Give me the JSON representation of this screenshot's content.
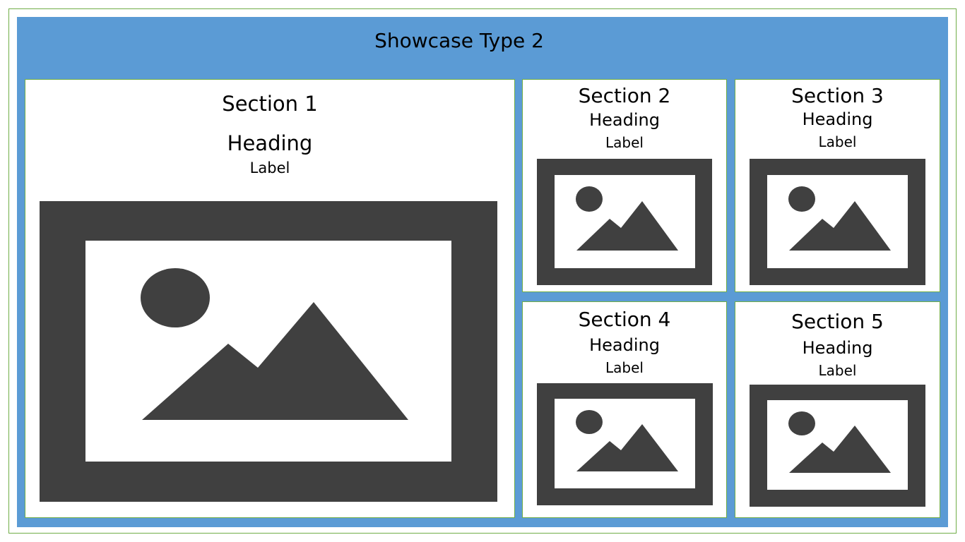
{
  "title": "Showcase Type 2",
  "colors": {
    "frame": "#5b9bd5",
    "panel": "#ffffff",
    "border": "#70ad47",
    "image": "#404040"
  },
  "sections": [
    {
      "name": "Section 1",
      "heading": "Heading",
      "label": "Label",
      "image_icon": "image-placeholder-icon"
    },
    {
      "name": "Section 2",
      "heading": "Heading",
      "label": "Label",
      "image_icon": "image-placeholder-icon"
    },
    {
      "name": "Section 3",
      "heading": "Heading",
      "label": "Label",
      "image_icon": "image-placeholder-icon"
    },
    {
      "name": "Section 4",
      "heading": "Heading",
      "label": "Label",
      "image_icon": "image-placeholder-icon"
    },
    {
      "name": "Section 5",
      "heading": "Heading",
      "label": "Label",
      "image_icon": "image-placeholder-icon"
    }
  ]
}
